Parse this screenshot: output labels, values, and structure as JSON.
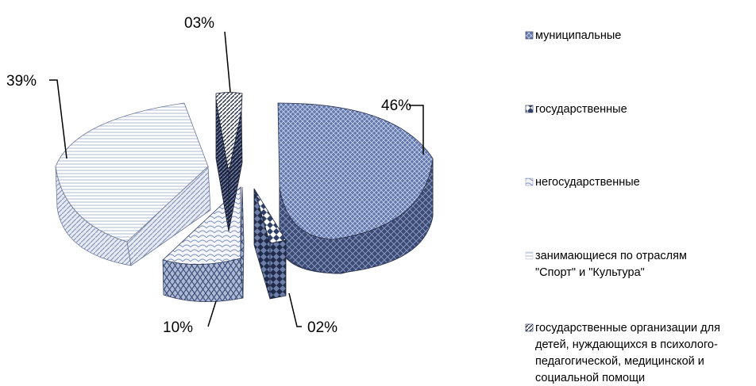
{
  "chart_data": {
    "type": "pie",
    "style": "3d-exploded",
    "title": "",
    "legend_position": "right",
    "slices": [
      {
        "name": "муниципальные",
        "value": 46,
        "label": "46%",
        "color": "#5a6ea3"
      },
      {
        "name": "государственные",
        "value": 2,
        "label": "02%",
        "color": "#2f4068"
      },
      {
        "name": "негосударственные",
        "value": 10,
        "label": "10%",
        "color": "#e3e9f3"
      },
      {
        "name": "занимающиеся по отраслям \"Спорт\" и \"Культура\"",
        "value": 39,
        "label": "39%",
        "color": "#eef1f6"
      },
      {
        "name": "государственные организации для детей, нуждающихся в психолого-педагогической, медицинской и социальной помощи",
        "value": 3,
        "label": "03%",
        "color": "#2a3352"
      }
    ],
    "legend": [
      {
        "lines": [
          "муниципальные"
        ]
      },
      {
        "lines": [
          "государственные"
        ]
      },
      {
        "lines": [
          "негосударственные"
        ]
      },
      {
        "lines": [
          "занимающиеся по отраслям",
          "\"Спорт\" и \"Культура\""
        ]
      },
      {
        "lines": [
          "государственные организации для",
          "детей, нуждающихся в психолого-",
          "педагогической, медицинской и",
          "социальной помощи"
        ]
      }
    ]
  }
}
